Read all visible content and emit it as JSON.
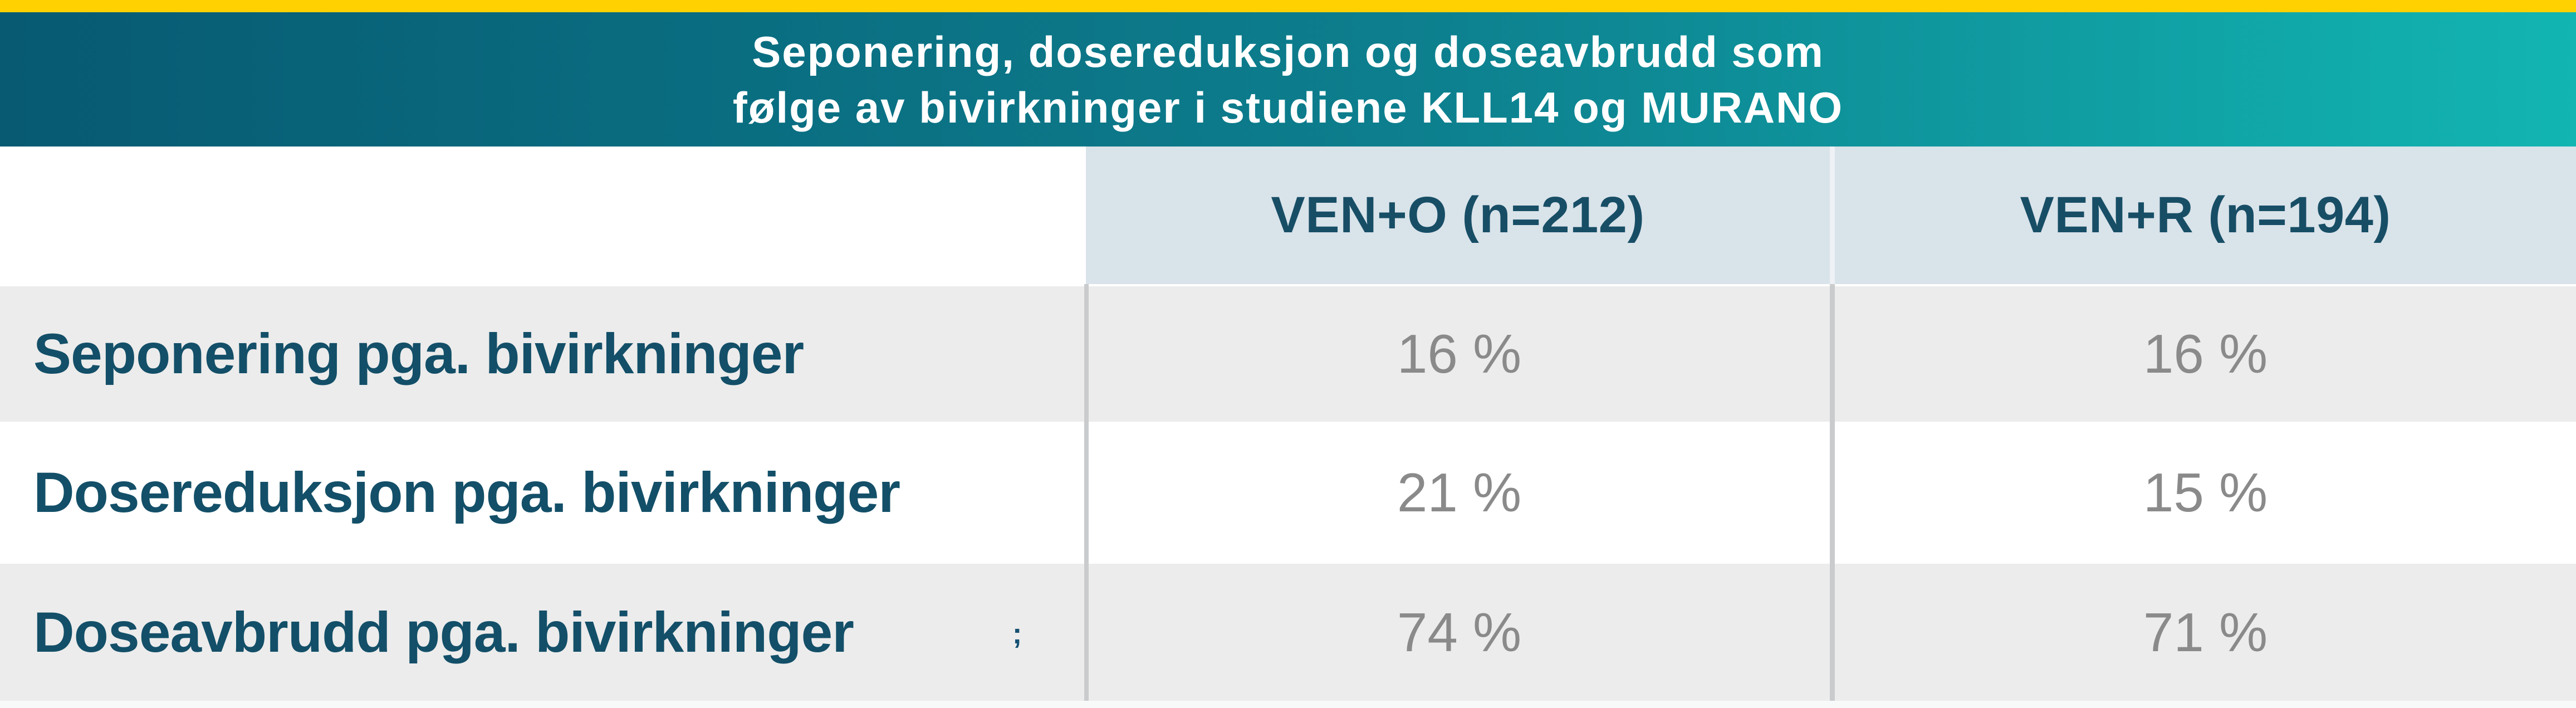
{
  "title": {
    "line1": "Seponering, dosereduksjon og doseavbrudd som",
    "line2": "følge av bivirkninger i studiene KLL14 og MURANO"
  },
  "table": {
    "columns": [
      {
        "label": "VEN+O (n=212)"
      },
      {
        "label": "VEN+R (n=194)"
      }
    ],
    "rows": [
      {
        "label": "Seponering pga. bivirkninger",
        "values": [
          "16 %",
          "16 %"
        ]
      },
      {
        "label": "Dosereduksjon pga. bivirkninger",
        "values": [
          "21 %",
          "15 %"
        ]
      },
      {
        "label": "Doseavbrudd pga. bivirkninger",
        "values": [
          "74 %",
          "71 %"
        ],
        "note_marker": ";"
      }
    ]
  },
  "colors": {
    "accent_yellow": "#ffd100",
    "gradient_left_teal": "#075a72",
    "gradient_right_teal": "#12b5b2",
    "column_header_bg": "#d9e3ea",
    "row_alt_bg": "#ececec",
    "label_text": "#134f68",
    "value_text": "#8a8a8a",
    "divider": "#c9cbcd"
  },
  "chart_data": {
    "type": "table",
    "title": "Seponering, dosereduksjon og doseavbrudd som følge av bivirkninger i studiene KLL14 og MURANO",
    "columns": [
      "",
      "VEN+O (n=212)",
      "VEN+R (n=194)"
    ],
    "rows": [
      [
        "Seponering pga. bivirkninger",
        "16 %",
        "16 %"
      ],
      [
        "Dosereduksjon pga. bivirkninger",
        "21 %",
        "15 %"
      ],
      [
        "Doseavbrudd pga. bivirkninger",
        "74 %",
        "71 %"
      ]
    ],
    "values_pct": {
      "VEN+O (n=212)": [
        16,
        21,
        74
      ],
      "VEN+R (n=194)": [
        16,
        15,
        71
      ]
    }
  }
}
